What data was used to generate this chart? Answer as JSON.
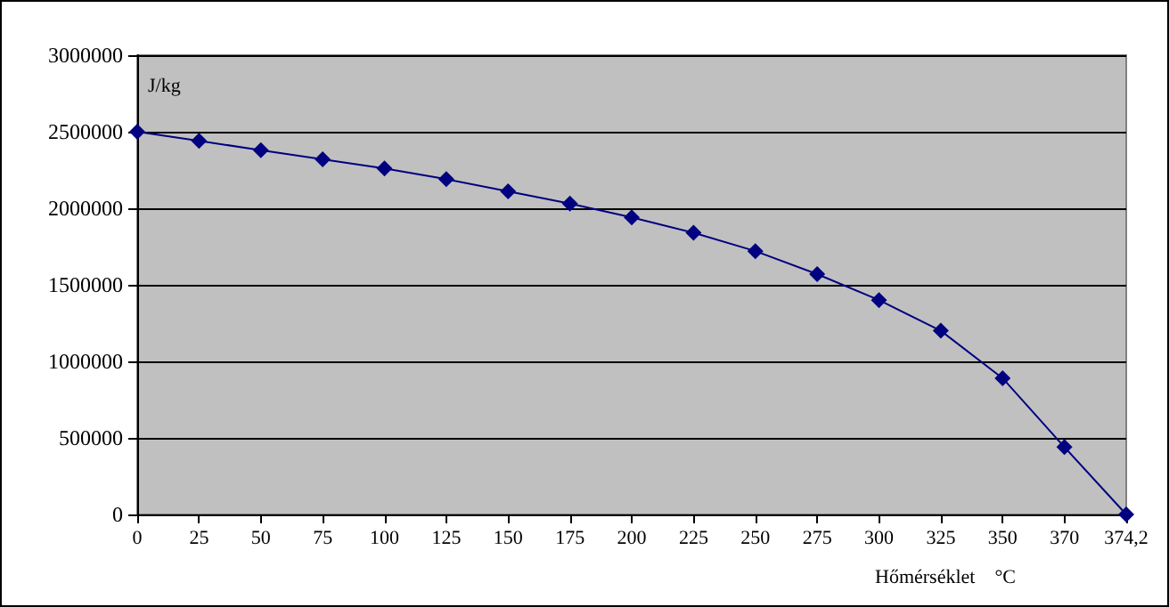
{
  "chart_data": {
    "type": "line",
    "ylabel": "J/kg",
    "xlabel": "Hőmérséklet    °C",
    "categories": [
      "0",
      "25",
      "50",
      "75",
      "100",
      "125",
      "150",
      "175",
      "200",
      "225",
      "250",
      "275",
      "300",
      "325",
      "350",
      "370",
      "374,2"
    ],
    "series": [
      {
        "color": "#000080",
        "values": [
          2500000,
          2440000,
          2380000,
          2320000,
          2260000,
          2190000,
          2110000,
          2030000,
          1940000,
          1840000,
          1720000,
          1570000,
          1400000,
          1200000,
          890000,
          440000,
          0
        ]
      }
    ],
    "ylim": [
      0,
      3000000
    ],
    "yticks": [
      0,
      500000,
      1000000,
      1500000,
      2000000,
      2500000,
      3000000
    ],
    "grid": "y",
    "marker": "diamond",
    "line_style": "solid"
  }
}
